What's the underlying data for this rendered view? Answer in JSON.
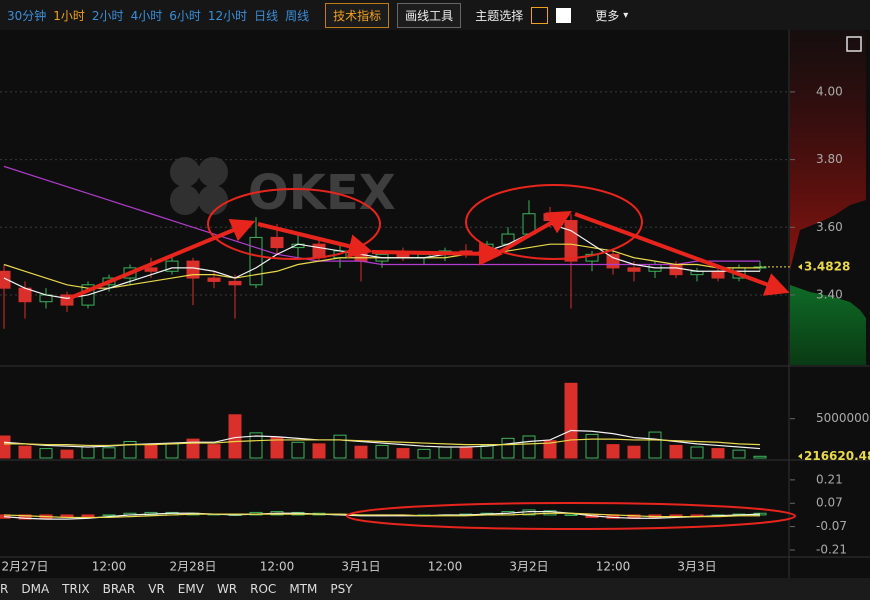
{
  "toolbar": {
    "periods": [
      "30分钟",
      "1小时",
      "2小时",
      "4小时",
      "6小时",
      "12小时",
      "日线",
      "周线"
    ],
    "active_period": 1,
    "indicator_button": "技术指标",
    "drawing_button": "画线工具",
    "theme_label": "主题选择",
    "more": "更多"
  },
  "watermark": "OKEX",
  "indicator_tabs": [
    "R",
    "DMA",
    "TRIX",
    "BRAR",
    "VR",
    "EMV",
    "WR",
    "ROC",
    "MTM",
    "PSY"
  ],
  "chart_data": [
    {
      "type": "candlestick",
      "up_color": "#3cb45a",
      "down_color": "#d9302b",
      "categories": [
        null,
        "2月27日",
        null,
        null,
        null,
        "12:00",
        null,
        null,
        null,
        "2月28日",
        null,
        null,
        null,
        "12:00",
        null,
        null,
        null,
        "3月1日",
        null,
        null,
        null,
        "12:00",
        null,
        null,
        null,
        "3月2日",
        null,
        null,
        null,
        "12:00",
        null,
        null,
        null,
        "3月3日",
        null,
        null,
        null
      ],
      "open": [
        3.47,
        3.42,
        3.38,
        3.4,
        3.37,
        3.43,
        3.45,
        3.48,
        3.47,
        3.5,
        3.45,
        3.44,
        3.43,
        3.57,
        3.54,
        3.55,
        3.51,
        3.53,
        3.5,
        3.52,
        3.51,
        3.52,
        3.53,
        3.52,
        3.55,
        3.58,
        3.64,
        3.62,
        3.5,
        3.52,
        3.48,
        3.47,
        3.49,
        3.46,
        3.47,
        3.45,
        3.48
      ],
      "high": [
        3.49,
        3.44,
        3.42,
        3.41,
        3.44,
        3.46,
        3.49,
        3.51,
        3.52,
        3.51,
        3.47,
        3.46,
        3.63,
        3.61,
        3.58,
        3.57,
        3.55,
        3.54,
        3.53,
        3.54,
        3.53,
        3.54,
        3.55,
        3.56,
        3.6,
        3.68,
        3.66,
        3.64,
        3.53,
        3.53,
        3.5,
        3.5,
        3.5,
        3.48,
        3.49,
        3.49,
        3.5
      ],
      "low": [
        3.3,
        3.33,
        3.36,
        3.35,
        3.36,
        3.41,
        3.43,
        3.45,
        3.46,
        3.37,
        3.42,
        3.33,
        3.42,
        3.52,
        3.51,
        3.5,
        3.48,
        3.44,
        3.48,
        3.5,
        3.49,
        3.5,
        3.51,
        3.51,
        3.53,
        3.57,
        3.6,
        3.36,
        3.47,
        3.46,
        3.44,
        3.45,
        3.45,
        3.44,
        3.44,
        3.44,
        3.47
      ],
      "close": [
        3.42,
        3.38,
        3.4,
        3.37,
        3.43,
        3.45,
        3.48,
        3.47,
        3.5,
        3.45,
        3.44,
        3.43,
        3.57,
        3.54,
        3.55,
        3.51,
        3.53,
        3.5,
        3.52,
        3.51,
        3.52,
        3.53,
        3.52,
        3.55,
        3.58,
        3.64,
        3.62,
        3.5,
        3.52,
        3.48,
        3.47,
        3.49,
        3.46,
        3.47,
        3.45,
        3.48,
        3.4828
      ],
      "series": [
        {
          "color": "#b23ccf",
          "values": [
            3.78,
            3.76,
            3.74,
            3.72,
            3.7,
            3.68,
            3.66,
            3.64,
            3.62,
            3.6,
            3.58,
            3.56,
            3.54,
            3.52,
            3.51,
            3.5,
            3.5,
            3.5,
            3.49,
            3.49,
            3.49,
            3.49,
            3.49,
            3.49,
            3.49,
            3.49,
            3.49,
            3.49,
            3.49,
            3.49,
            3.49,
            3.49,
            3.49,
            3.5,
            3.5,
            3.5,
            3.5
          ]
        },
        {
          "color": "#e8d84a",
          "values": [
            3.49,
            3.47,
            3.45,
            3.43,
            3.42,
            3.42,
            3.43,
            3.44,
            3.45,
            3.46,
            3.46,
            3.45,
            3.46,
            3.47,
            3.49,
            3.5,
            3.51,
            3.51,
            3.51,
            3.51,
            3.51,
            3.51,
            3.52,
            3.52,
            3.53,
            3.54,
            3.55,
            3.55,
            3.54,
            3.53,
            3.51,
            3.5,
            3.49,
            3.49,
            3.48,
            3.48,
            3.48
          ]
        },
        {
          "color": "#f2f2f2",
          "values": [
            3.45,
            3.42,
            3.4,
            3.39,
            3.4,
            3.42,
            3.44,
            3.46,
            3.48,
            3.48,
            3.47,
            3.45,
            3.48,
            3.52,
            3.55,
            3.54,
            3.53,
            3.52,
            3.51,
            3.51,
            3.51,
            3.52,
            3.52,
            3.53,
            3.55,
            3.58,
            3.61,
            3.59,
            3.55,
            3.51,
            3.49,
            3.48,
            3.48,
            3.47,
            3.47,
            3.47,
            3.47
          ]
        }
      ],
      "ylim": [
        3.193,
        4.183
      ],
      "yticks": [
        {
          "value": 4,
          "label": "4.00"
        },
        {
          "value": 3.8,
          "label": "3.80"
        },
        {
          "value": 3.6,
          "label": "3.60"
        },
        {
          "value": 3.4,
          "label": "3.40"
        }
      ],
      "grid": true,
      "last_price": 3.4828
    },
    {
      "type": "bar",
      "values": [
        2800000,
        1500000,
        1200000,
        1000000,
        1400000,
        1300000,
        2100000,
        1600000,
        1800000,
        2400000,
        1700000,
        5500000,
        3200000,
        2600000,
        2000000,
        1800000,
        2900000,
        1500000,
        1600000,
        1200000,
        1100000,
        1400000,
        1300000,
        1600000,
        2500000,
        2800000,
        2200000,
        9500000,
        3000000,
        1700000,
        1500000,
        3300000,
        1600000,
        1400000,
        1200000,
        1000000,
        216620.48
      ],
      "series": [
        {
          "color": "#f2f2f2",
          "values": [
            2000000,
            1800000,
            1600000,
            1500000,
            1400000,
            1500000,
            1700000,
            1800000,
            1900000,
            2000000,
            2000000,
            2600000,
            2800000,
            2700000,
            2500000,
            2300000,
            2300000,
            2100000,
            1900000,
            1700000,
            1500000,
            1400000,
            1400000,
            1500000,
            1800000,
            2100000,
            2300000,
            3500000,
            3400000,
            3100000,
            2600000,
            2400000,
            2100000,
            1800000,
            1600000,
            1400000,
            1200000
          ]
        },
        {
          "color": "#e8d84a",
          "values": [
            1800000,
            1800000,
            1700000,
            1700000,
            1600000,
            1600000,
            1700000,
            1700000,
            1800000,
            1900000,
            1900000,
            2100000,
            2200000,
            2300000,
            2300000,
            2300000,
            2300000,
            2200000,
            2100000,
            2000000,
            1900000,
            1800000,
            1700000,
            1700000,
            1700000,
            1800000,
            1900000,
            2300000,
            2400000,
            2400000,
            2300000,
            2300000,
            2200000,
            2100000,
            2000000,
            1800000,
            1700000
          ]
        }
      ],
      "ylim": [
        0,
        11450000
      ],
      "yticks": [
        {
          "value": 5000000,
          "label": "5000000.00"
        }
      ],
      "last_value": 216620.48
    },
    {
      "type": "bar",
      "values": [
        -0.02,
        -0.025,
        -0.02,
        -0.015,
        -0.01,
        0.0,
        0.01,
        0.015,
        0.015,
        0.01,
        0.005,
        0.0,
        0.015,
        0.02,
        0.015,
        0.01,
        0.005,
        0.0,
        -0.005,
        -0.005,
        0.0,
        0.0,
        0.005,
        0.01,
        0.02,
        0.03,
        0.025,
        0.0,
        -0.015,
        -0.02,
        -0.02,
        -0.015,
        -0.01,
        -0.005,
        0.0,
        0.005,
        0.01
      ],
      "series": [
        {
          "color": "#f2f2f2",
          "values": [
            -0.01,
            -0.02,
            -0.025,
            -0.025,
            -0.02,
            -0.01,
            0.0,
            0.005,
            0.01,
            0.01,
            0.005,
            0.0,
            0.005,
            0.01,
            0.01,
            0.005,
            0.0,
            -0.005,
            -0.005,
            -0.005,
            -0.005,
            0.0,
            0.0,
            0.005,
            0.01,
            0.02,
            0.02,
            0.01,
            -0.005,
            -0.015,
            -0.02,
            -0.02,
            -0.015,
            -0.01,
            -0.005,
            0.0,
            0.005
          ]
        },
        {
          "color": "#e8d84a",
          "values": [
            0.0,
            -0.005,
            -0.01,
            -0.015,
            -0.015,
            -0.015,
            -0.01,
            -0.005,
            0.0,
            0.005,
            0.005,
            0.005,
            0.005,
            0.005,
            0.005,
            0.005,
            0.005,
            0.0,
            0.0,
            0.0,
            -0.005,
            -0.005,
            -0.005,
            0.0,
            0.0,
            0.005,
            0.01,
            0.01,
            0.005,
            0.0,
            -0.005,
            -0.01,
            -0.01,
            -0.01,
            -0.01,
            -0.005,
            -0.005
          ]
        }
      ],
      "ylim": [
        -0.246,
        0.317
      ],
      "yticks": [
        0.21,
        0.07,
        -0.07,
        -0.21
      ]
    }
  ]
}
